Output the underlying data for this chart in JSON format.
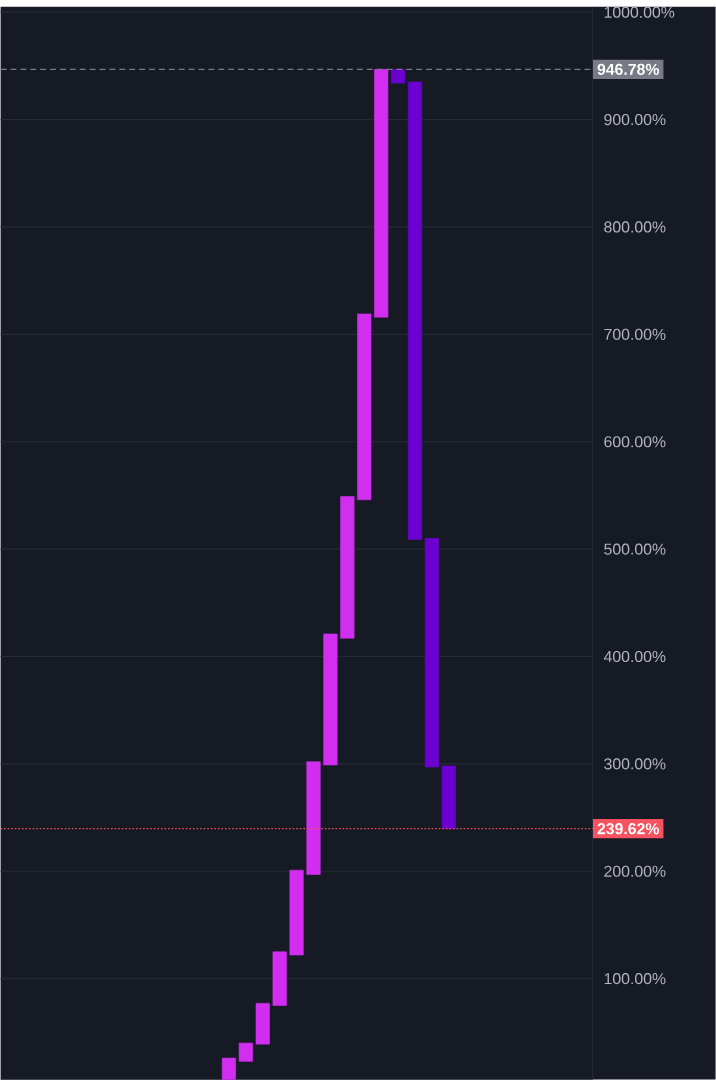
{
  "chart_data": {
    "type": "bar",
    "categories": [
      null,
      null,
      null,
      null,
      null,
      null,
      null,
      null,
      null,
      null,
      null,
      null,
      null,
      null,
      null,
      null,
      null,
      null,
      null,
      null,
      null,
      null,
      null,
      null,
      null,
      null,
      null,
      null,
      null,
      null,
      null,
      null,
      null,
      null,
      null
    ],
    "values": [
      null,
      null,
      null,
      null,
      null,
      null,
      null,
      null,
      null,
      null,
      null,
      null,
      null,
      20,
      17,
      38,
      50,
      79,
      105,
      122,
      132,
      173,
      230.78,
      -12.78,
      -426,
      -213,
      -58.38,
      null,
      null,
      null,
      null,
      null,
      null,
      null,
      null
    ],
    "base": [
      null,
      null,
      null,
      null,
      null,
      null,
      null,
      null,
      null,
      null,
      null,
      null,
      null,
      6,
      23,
      39,
      75,
      122,
      197,
      299,
      417,
      546,
      716,
      946.78,
      935,
      510,
      298,
      null,
      null,
      null,
      null,
      null,
      null,
      null,
      null
    ],
    "colors": [
      null,
      null,
      null,
      null,
      null,
      null,
      null,
      null,
      null,
      null,
      null,
      null,
      null,
      "#d12ef0",
      "#d12ef0",
      "#d12ef0",
      "#d12ef0",
      "#d12ef0",
      "#d12ef0",
      "#d12ef0",
      "#d12ef0",
      "#d12ef0",
      "#d12ef0",
      "#6b00d0",
      "#6b00d0",
      "#6b00d0",
      "#6b00d0",
      null,
      null,
      null,
      null,
      null,
      null,
      null,
      null
    ],
    "ylim": [
      6,
      1005
    ],
    "yticks": [
      {
        "value": 100,
        "label": "100.00%"
      },
      {
        "value": 200,
        "label": "200.00%"
      },
      {
        "value": 300,
        "label": "300.00%"
      },
      {
        "value": 400,
        "label": "400.00%"
      },
      {
        "value": 500,
        "label": "500.00%"
      },
      {
        "value": 600,
        "label": "600.00%"
      },
      {
        "value": 700,
        "label": "700.00%"
      },
      {
        "value": 800,
        "label": "800.00%"
      },
      {
        "value": 900,
        "label": "900.00%"
      },
      {
        "value": 1000,
        "label": "1000.00%"
      }
    ],
    "ref_lines": [
      {
        "axis": "y",
        "value": 946.78,
        "label": "946.78%",
        "color": "#787b86",
        "line_style": "dashed"
      },
      {
        "axis": "y",
        "value": 239.62,
        "label": "239.62%",
        "color": "#f7525f",
        "line_style": "dotted"
      }
    ],
    "grid": "y"
  }
}
